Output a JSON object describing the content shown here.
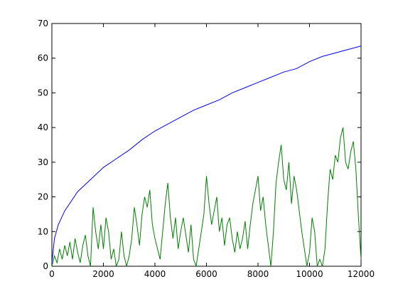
{
  "chart_data": {
    "type": "line",
    "xlim": [
      0,
      12000
    ],
    "xticks": [
      0,
      2000,
      4000,
      6000,
      8000,
      10000,
      12000
    ],
    "ylim": [
      0,
      70
    ],
    "yticks": [
      0,
      10,
      20,
      30,
      40,
      50,
      60,
      70
    ],
    "grid": false,
    "series": [
      {
        "color": "#0000ff",
        "x": [
          0,
          100,
          250,
          500,
          1000,
          1500,
          2000,
          2500,
          3000,
          3500,
          4000,
          4500,
          5000,
          5500,
          6000,
          6500,
          7000,
          7500,
          8000,
          8500,
          9000,
          9500,
          10000,
          10500,
          11000,
          11500,
          12000
        ],
        "values": [
          1,
          8,
          12,
          16,
          21.5,
          25,
          28.5,
          31,
          33.5,
          36.5,
          39,
          41,
          43,
          45,
          46.5,
          48,
          50,
          51.5,
          53,
          54.5,
          56,
          57,
          59,
          60.5,
          61.5,
          62.5,
          63.5
        ]
      },
      {
        "color": "#008000",
        "x": [
          0,
          100,
          200,
          300,
          400,
          500,
          600,
          700,
          800,
          900,
          1000,
          1100,
          1200,
          1300,
          1400,
          1500,
          1600,
          1700,
          1800,
          1900,
          2000,
          2100,
          2200,
          2300,
          2400,
          2500,
          2600,
          2700,
          2800,
          2900,
          3000,
          3100,
          3200,
          3300,
          3400,
          3500,
          3600,
          3700,
          3800,
          3900,
          4000,
          4100,
          4200,
          4300,
          4400,
          4500,
          4600,
          4700,
          4800,
          4900,
          5000,
          5100,
          5200,
          5300,
          5400,
          5500,
          5600,
          5700,
          5800,
          5900,
          6000,
          6100,
          6200,
          6300,
          6400,
          6500,
          6600,
          6700,
          6800,
          6900,
          7000,
          7100,
          7200,
          7300,
          7400,
          7500,
          7600,
          7700,
          7800,
          7900,
          8000,
          8100,
          8200,
          8300,
          8400,
          8500,
          8600,
          8700,
          8800,
          8900,
          9000,
          9100,
          9200,
          9300,
          9400,
          9500,
          9600,
          9700,
          9800,
          9900,
          10000,
          10100,
          10200,
          10300,
          10400,
          10500,
          10600,
          10700,
          10800,
          10900,
          11000,
          11100,
          11200,
          11300,
          11400,
          11500,
          11600,
          11700,
          11800,
          11900,
          12000
        ],
        "values": [
          0,
          3,
          1,
          5,
          2,
          6,
          3,
          7,
          2,
          8,
          4,
          1,
          6,
          9,
          3,
          0,
          17,
          10,
          5,
          12,
          5,
          14,
          10,
          2,
          5,
          0,
          2,
          10,
          3,
          0,
          3,
          8,
          17,
          12,
          6,
          15,
          20,
          17,
          22,
          12,
          8,
          5,
          2,
          10,
          18,
          24,
          14,
          8,
          14,
          5,
          10,
          14,
          9,
          4,
          12,
          2,
          0,
          5,
          10,
          15,
          26,
          18,
          12,
          16,
          20,
          10,
          14,
          6,
          12,
          14,
          8,
          4,
          10,
          5,
          8,
          13,
          5,
          12,
          18,
          22,
          26,
          16,
          20,
          12,
          6,
          0,
          10,
          24,
          30,
          35,
          25,
          22,
          30,
          18,
          26,
          22,
          16,
          10,
          5,
          0,
          4,
          14,
          10,
          0,
          2,
          0,
          5,
          18,
          28,
          25,
          32,
          30,
          37,
          40,
          30,
          28,
          33,
          36,
          28,
          14,
          2
        ]
      }
    ]
  }
}
